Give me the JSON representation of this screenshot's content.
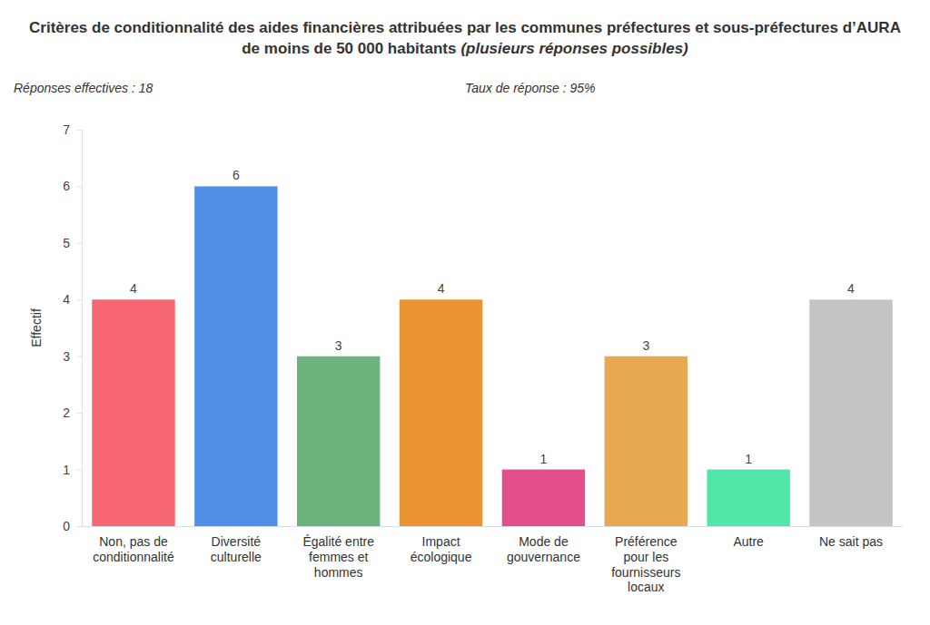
{
  "chart_data": {
    "type": "bar",
    "title": "Critères de conditionnalité des aides financières attribuées par les communes préfectures et sous-préfectures d’AURA de moins de 50 000 habitants",
    "subtitle": "(plusieurs réponses possibles)",
    "annotations": [
      "Réponses effectives : 18",
      "Taux de réponse : 95%"
    ],
    "y_label": "Effectif",
    "categories": [
      "Non, pas de conditionnalité",
      "Diversité culturelle",
      "Égalité entre femmes et hommes",
      "Impact écologique",
      "Mode de gouvernance",
      "Préférence pour les fournisseurs locaux",
      "Autre",
      "Ne sait pas"
    ],
    "values": [
      4,
      6,
      3,
      4,
      1,
      3,
      1,
      4
    ],
    "colors": [
      "#f76673",
      "#518fe6",
      "#6db37e",
      "#ea9332",
      "#e24f8a",
      "#e6a853",
      "#50e6a8",
      "#c4c4c4"
    ],
    "ylim": [
      0,
      7
    ],
    "yticks": [
      0,
      1,
      2,
      3,
      4,
      5,
      6,
      7
    ],
    "grid": false,
    "data_labels": true
  }
}
